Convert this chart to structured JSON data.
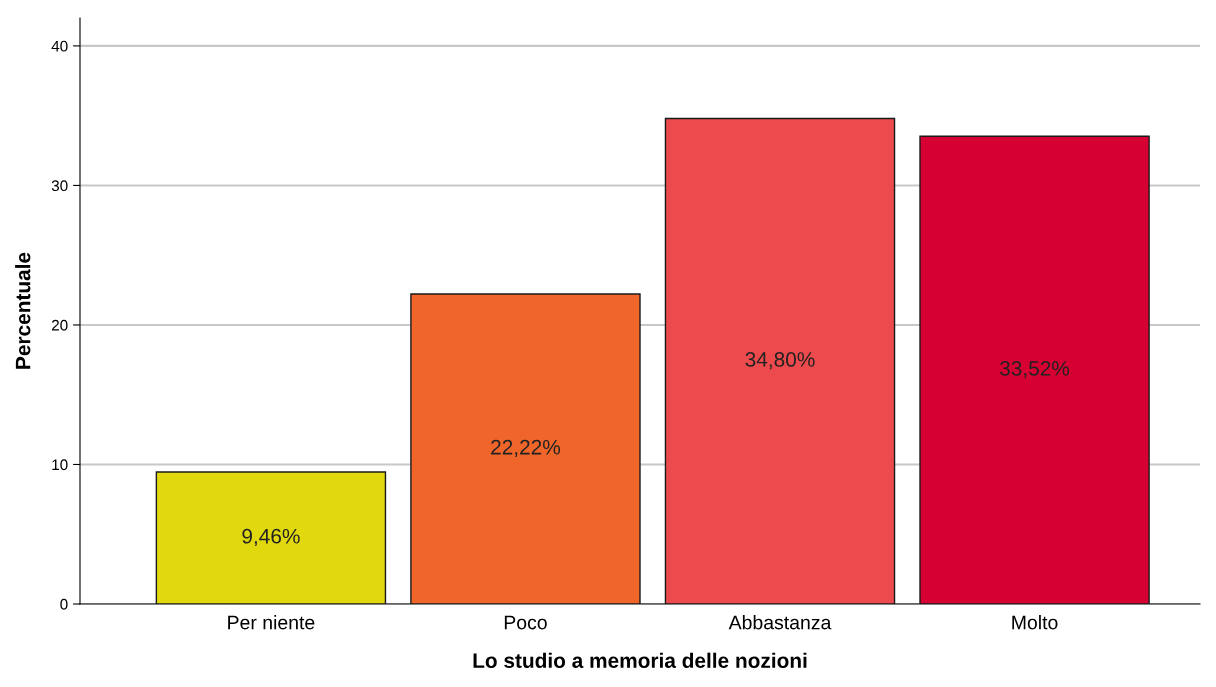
{
  "chart_data": {
    "type": "bar",
    "xlabel": "Lo studio a memoria delle nozioni",
    "ylabel": "Percentuale",
    "categories": [
      "Per niente",
      "Poco",
      "Abbastanza",
      "Molto"
    ],
    "values": [
      9.46,
      22.22,
      34.8,
      33.52
    ],
    "value_labels": [
      "9,46%",
      "22,22%",
      "34,80%",
      "33,52%"
    ],
    "colors": [
      "#e1d90e",
      "#f0662a",
      "#ec4a4c",
      "#d60132"
    ],
    "ylim": [
      0,
      42
    ],
    "yticks": [
      0,
      10,
      20,
      30,
      40
    ],
    "grid": "y",
    "legend": false
  }
}
